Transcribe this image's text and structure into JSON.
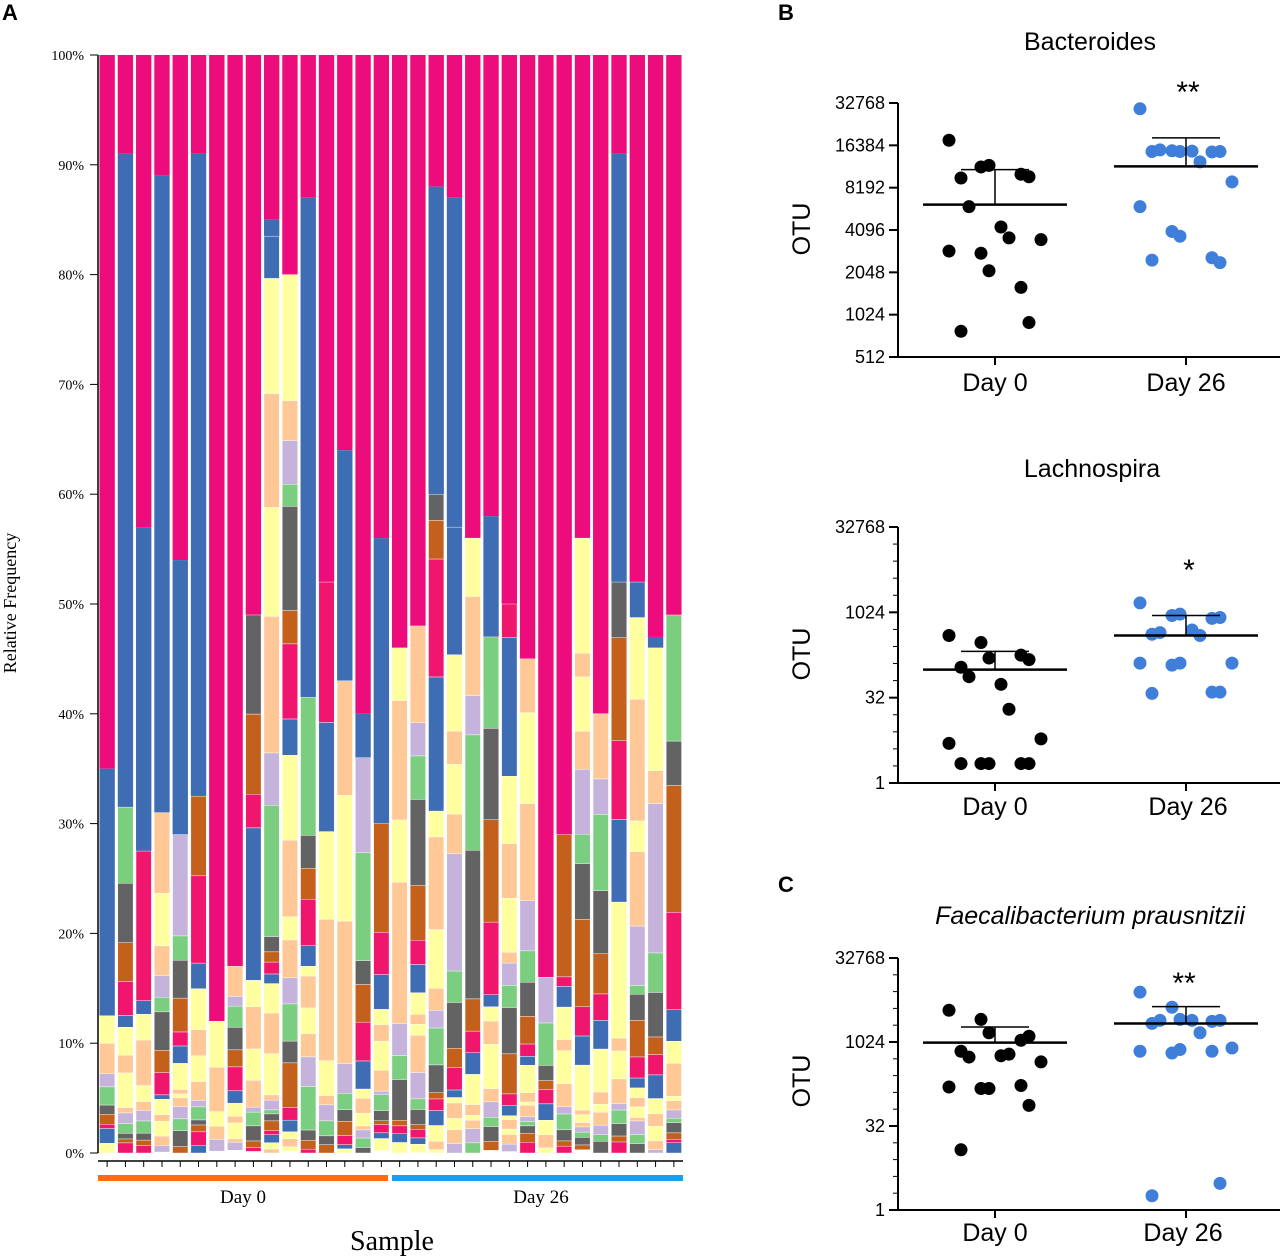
{
  "panel_labels": {
    "a": "A",
    "b": "B",
    "c": "C"
  },
  "colors": {
    "day0_bar": "#ff6a13",
    "day26_bar": "#1a9ff0",
    "dot_day0": "#000000",
    "dot_day26": "#3f7fd9",
    "palette": [
      "#ec0c7c",
      "#3f6db4",
      "#ffffa0",
      "#ffc896",
      "#c5b3dc",
      "#7bcd7f",
      "#636363",
      "#c3601c",
      "#f0166e",
      "#e6e6e6"
    ]
  },
  "chart_data": [
    {
      "type": "bar",
      "stacked": true,
      "title": "",
      "xlabel": "Sample",
      "ylabel": "Relative Frequency",
      "ylim": [
        0,
        100
      ],
      "yticks": [
        "0%",
        "10%",
        "20%",
        "30%",
        "40%",
        "50%",
        "60%",
        "70%",
        "80%",
        "90%",
        "100%"
      ],
      "groups": [
        {
          "label": "Day 0",
          "samples": 16
        },
        {
          "label": "Day 26",
          "samples": 16
        }
      ],
      "series_top": [
        {
          "name": "pink (top taxon)",
          "start_percent": [
            35,
            91,
            57,
            89,
            54,
            91,
            12,
            17,
            49,
            85,
            80,
            87,
            52,
            64,
            40,
            56,
            46,
            48,
            88,
            87,
            56,
            58,
            50,
            45,
            16,
            29,
            56,
            40,
            91,
            52,
            47,
            49
          ]
        },
        {
          "name": "blue",
          "start_percent": [
            12.5,
            31.5,
            27.5,
            31,
            29,
            32.5,
            0,
            0,
            0,
            83.5,
            0,
            41.5,
            58,
            43,
            36,
            30,
            0,
            0,
            60,
            57,
            0,
            47,
            0,
            0,
            0,
            0,
            0,
            40,
            52,
            62,
            46,
            0
          ]
        },
        {
          "name": "yellow",
          "start_percent": [
            12,
            30,
            57,
            29,
            29,
            29,
            12,
            17,
            49,
            83,
            80,
            41,
            0,
            64,
            0,
            56,
            46,
            48,
            52,
            47,
            56,
            47,
            50,
            57,
            16,
            29,
            56,
            37,
            51,
            47,
            45,
            49
          ]
        }
      ]
    },
    {
      "type": "scatter",
      "title": "Bacteroides",
      "ylabel": "OTU",
      "yscale": "log2",
      "yticks": [
        "512",
        "1024",
        "2048",
        "4096",
        "8192",
        "16384",
        "32768"
      ],
      "ylim": [
        512,
        32768
      ],
      "categories": [
        "Day 0",
        "Day 26"
      ],
      "significance": "**",
      "series": [
        {
          "name": "Day 0",
          "values": [
            17800,
            11500,
            11800,
            10200,
            9800,
            9600,
            6000,
            4300,
            3600,
            3500,
            2900,
            2800,
            2100,
            1600,
            900,
            780
          ],
          "mean": 6200,
          "sd_upper": 11000
        },
        {
          "name": "Day 26",
          "values": [
            29800,
            15000,
            14800,
            14700,
            14800,
            14800,
            15200,
            14900,
            12500,
            9000,
            6000,
            4000,
            3700,
            2600,
            2400,
            2500
          ],
          "mean": 11600,
          "sd_upper": 18500
        }
      ]
    },
    {
      "type": "scatter",
      "title": "Lachnospira",
      "ylabel": "OTU",
      "yscale": "log2",
      "yticks": [
        "1",
        "32",
        "1024",
        "32768"
      ],
      "ylim": [
        1,
        32768
      ],
      "categories": [
        "Day 0",
        "Day 26"
      ],
      "significance": "*",
      "series": [
        {
          "name": "Day 0",
          "values": [
            400,
            300,
            160,
            180,
            150,
            110,
            75,
            55,
            20,
            6,
            5,
            2.2,
            2.2,
            2.2,
            2.2,
            2.2
          ],
          "mean": 100,
          "sd_upper": 210
        },
        {
          "name": "Day 26",
          "values": [
            1500,
            900,
            950,
            800,
            830,
            420,
            450,
            500,
            400,
            130,
            130,
            120,
            130,
            40,
            40,
            38
          ],
          "mean": 400,
          "sd_upper": 900
        }
      ]
    },
    {
      "type": "scatter",
      "title": "Faecalibacterium prausnitzii",
      "ylabel": "OTU",
      "yscale": "log2",
      "yticks": [
        "1",
        "32",
        "1024",
        "32768"
      ],
      "ylim": [
        1,
        32768
      ],
      "categories": [
        "Day 0",
        "Day 26"
      ],
      "significance": "**",
      "series": [
        {
          "name": "Day 0",
          "values": [
            3800,
            2600,
            1500,
            1100,
            1300,
            700,
            550,
            580,
            620,
            450,
            160,
            150,
            150,
            170,
            75,
            12
          ],
          "mean": 1000,
          "sd_upper": 1900
        },
        {
          "name": "Day 26",
          "values": [
            8000,
            4300,
            2600,
            2400,
            2500,
            2200,
            2500,
            2500,
            1500,
            800,
            700,
            650,
            750,
            700,
            3,
            1.8
          ],
          "mean": 2200,
          "sd_upper": 4400
        }
      ]
    }
  ]
}
